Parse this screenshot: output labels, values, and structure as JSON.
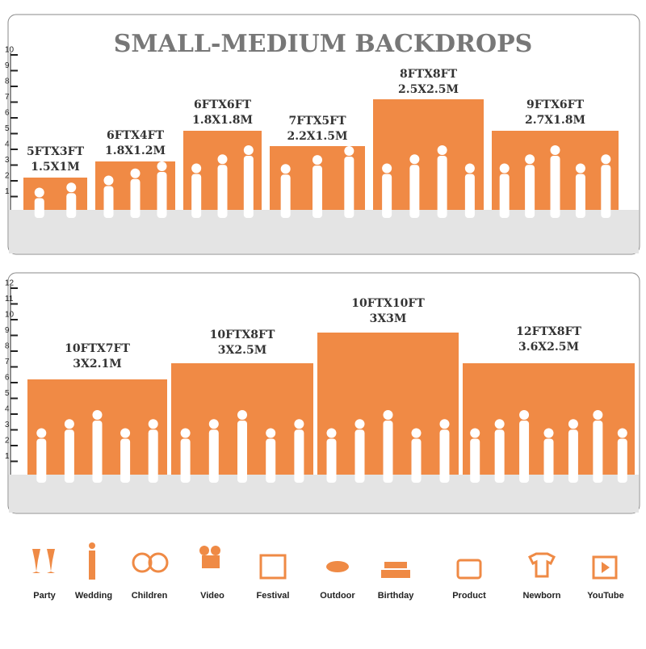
{
  "title": "SMALL-MEDIUM BACKDROPS",
  "panels": [
    {
      "ruler": [
        1,
        2,
        3,
        4,
        5,
        6,
        7,
        8,
        9,
        10
      ],
      "backdrops": [
        {
          "size": "5FTX3FT",
          "metric": "1.5X1M"
        },
        {
          "size": "6FTX4FT",
          "metric": "1.8X1.2M"
        },
        {
          "size": "6FTX6FT",
          "metric": "1.8X1.8M"
        },
        {
          "size": "7FTX5FT",
          "metric": "2.2X1.5M"
        },
        {
          "size": "8FTX8FT",
          "metric": "2.5X2.5M"
        },
        {
          "size": "9FTX6FT",
          "metric": "2.7X1.8M"
        }
      ]
    },
    {
      "ruler": [
        1,
        2,
        3,
        4,
        5,
        6,
        7,
        8,
        9,
        10,
        11,
        12
      ],
      "backdrops": [
        {
          "size": "10FTX7FT",
          "metric": "3X2.1M"
        },
        {
          "size": "10FTX8FT",
          "metric": "3X2.5M"
        },
        {
          "size": "10FTX10FT",
          "metric": "3X3M"
        },
        {
          "size": "12FTX8FT",
          "metric": "3.6X2.5M"
        }
      ]
    }
  ],
  "uses": [
    "Party",
    "Wedding",
    "Children",
    "Video",
    "Festival",
    "Outdoor",
    "Birthday",
    "Product",
    "Newborn",
    "YouTube"
  ]
}
